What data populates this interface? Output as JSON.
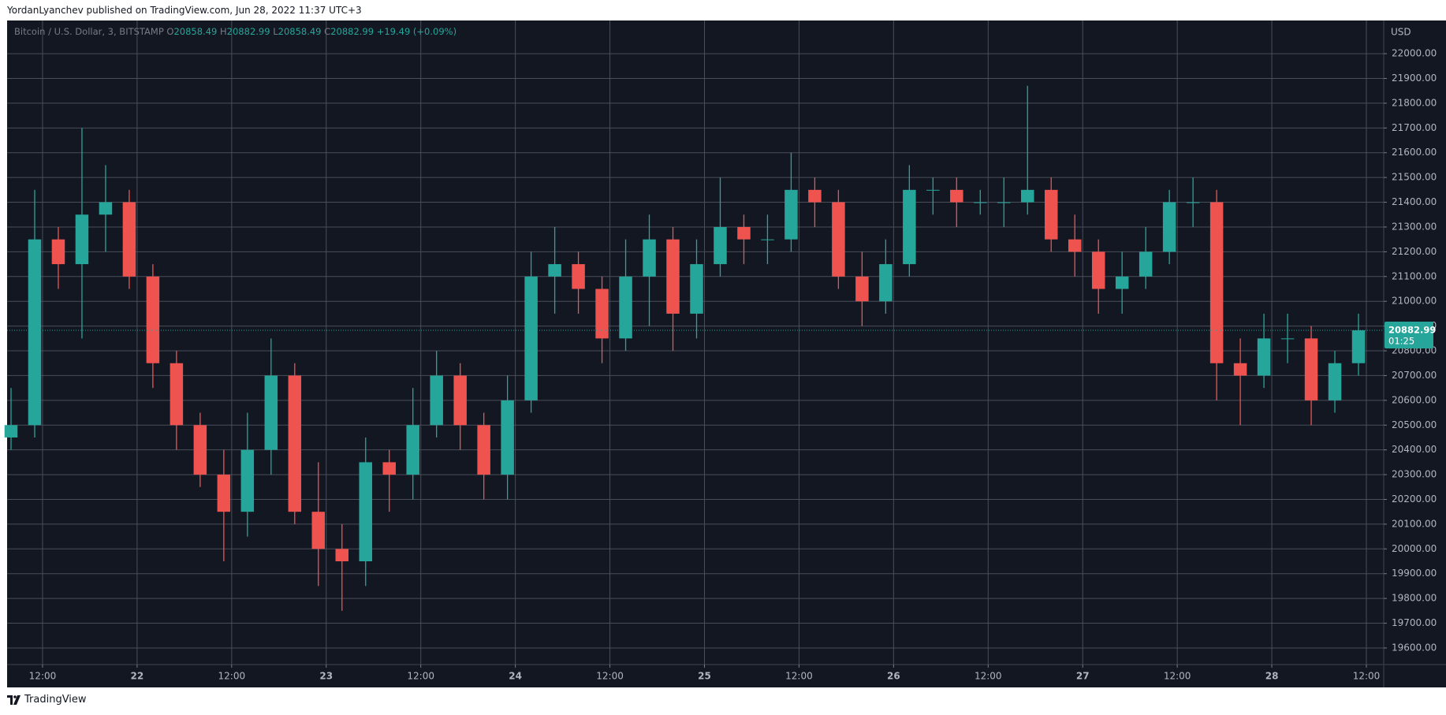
{
  "header": {
    "text": "YordanLyanchev published on TradingView.com, Jun 28, 2022 11:37 UTC+3"
  },
  "footer": {
    "brand": "TradingView"
  },
  "chart_data": {
    "type": "candlestick",
    "title": "Bitcoin / U.S. Dollar, 3, BITSTAMP",
    "ohlc": [
      {
        "label": "O",
        "value": 20858.49
      },
      {
        "label": "H",
        "value": 20882.99
      },
      {
        "label": "L",
        "value": 20858.49
      },
      {
        "label": "C",
        "value": 20882.99
      }
    ],
    "change": "+19.49 (+0.09%)",
    "currency": "USD",
    "last_price": 20882.99,
    "countdown": "01:25",
    "up_color": "#26a69a",
    "down_color": "#ef5350",
    "grid": true,
    "x": [
      -16,
      -13,
      -10,
      -7,
      -4,
      -1,
      2,
      5,
      8,
      11,
      14,
      17,
      20,
      23,
      26,
      29,
      32,
      35,
      38,
      41,
      44,
      47,
      50,
      53,
      56,
      59,
      62,
      65,
      68,
      71,
      74,
      77,
      80,
      83,
      86,
      89,
      92,
      95,
      98,
      101,
      104,
      107,
      110,
      113,
      116,
      119,
      122,
      125,
      128,
      131,
      134,
      137,
      140,
      143,
      146,
      149,
      152,
      155
    ],
    "open": [
      20450,
      20500,
      21250,
      21150,
      21350,
      21400,
      21100,
      20750,
      20500,
      20300,
      20150,
      20400,
      20700,
      20150,
      20000,
      19950,
      20350,
      20300,
      20500,
      20700,
      20500,
      20300,
      20600,
      21100,
      21150,
      21050,
      20850,
      21100,
      21250,
      20950,
      21150,
      21300,
      21250,
      21250,
      21450,
      21400,
      21100,
      21000,
      21150,
      21450,
      21450,
      21400,
      21400,
      21400,
      21450,
      21250,
      21200,
      21050,
      21100,
      21200,
      21400,
      21400,
      20750,
      20700,
      20850,
      20850,
      20600,
      20750
    ],
    "high": [
      20650,
      21450,
      21300,
      21700,
      21550,
      21450,
      21150,
      20800,
      20550,
      20400,
      20550,
      20850,
      20750,
      20350,
      20100,
      20450,
      20400,
      20650,
      20800,
      20750,
      20550,
      20700,
      21200,
      21300,
      21200,
      21100,
      21250,
      21350,
      21300,
      21250,
      21500,
      21350,
      21350,
      21600,
      21500,
      21450,
      21200,
      21250,
      21550,
      21500,
      21500,
      21450,
      21500,
      21870,
      21500,
      21350,
      21250,
      21200,
      21300,
      21450,
      21500,
      21450,
      20850,
      20950,
      20950,
      20900,
      20800,
      20950
    ],
    "low": [
      20400,
      20450,
      21050,
      20850,
      21200,
      21050,
      20650,
      20400,
      20250,
      19950,
      20050,
      20300,
      20100,
      19850,
      19750,
      19850,
      20150,
      20200,
      20450,
      20400,
      20200,
      20200,
      20550,
      20950,
      20950,
      20750,
      20800,
      20900,
      20800,
      20850,
      21100,
      21150,
      21150,
      21200,
      21300,
      21050,
      20900,
      20950,
      21100,
      21350,
      21300,
      21350,
      21300,
      21350,
      21200,
      21100,
      20950,
      20950,
      21050,
      21150,
      21300,
      20600,
      20500,
      20650,
      20750,
      20500,
      20550,
      20700
    ],
    "close": [
      20500,
      21250,
      21150,
      21350,
      21400,
      21100,
      20750,
      20500,
      20300,
      20150,
      20400,
      20700,
      20150,
      20000,
      19950,
      20350,
      20300,
      20500,
      20700,
      20500,
      20300,
      20600,
      21100,
      21150,
      21050,
      20850,
      21100,
      21250,
      20950,
      21150,
      21300,
      21250,
      21250,
      21450,
      21400,
      21100,
      21000,
      21150,
      21450,
      21450,
      21400,
      21400,
      21400,
      21450,
      21250,
      21200,
      21050,
      21100,
      21200,
      21400,
      21400,
      20750,
      20700,
      20850,
      20850,
      20600,
      20750,
      20882.99
    ],
    "xlim": [
      -16.5,
      158.2
    ],
    "ylim": [
      19533,
      22134
    ],
    "xticks": [
      {
        "value": -12,
        "label": "12:00"
      },
      {
        "value": 0,
        "label": "22"
      },
      {
        "value": 12,
        "label": "12:00"
      },
      {
        "value": 24,
        "label": "23"
      },
      {
        "value": 36,
        "label": "12:00"
      },
      {
        "value": 48,
        "label": "24"
      },
      {
        "value": 60,
        "label": "12:00"
      },
      {
        "value": 72,
        "label": "25"
      },
      {
        "value": 84,
        "label": "12:00"
      },
      {
        "value": 96,
        "label": "26"
      },
      {
        "value": 108,
        "label": "12:00"
      },
      {
        "value": 120,
        "label": "27"
      },
      {
        "value": 132,
        "label": "12:00"
      },
      {
        "value": 144,
        "label": "28"
      },
      {
        "value": 156,
        "label": "12:00"
      }
    ],
    "yticks": [
      {
        "value": 19600,
        "label": "19600.00"
      },
      {
        "value": 19700,
        "label": "19700.00"
      },
      {
        "value": 19800,
        "label": "19800.00"
      },
      {
        "value": 19900,
        "label": "19900.00"
      },
      {
        "value": 20000,
        "label": "20000.00"
      },
      {
        "value": 20100,
        "label": "20100.00"
      },
      {
        "value": 20200,
        "label": "20200.00"
      },
      {
        "value": 20300,
        "label": "20300.00"
      },
      {
        "value": 20400,
        "label": "20400.00"
      },
      {
        "value": 20500,
        "label": "20500.00"
      },
      {
        "value": 20600,
        "label": "20600.00"
      },
      {
        "value": 20700,
        "label": "20700.00"
      },
      {
        "value": 20800,
        "label": "20800.00"
      },
      {
        "value": 20900,
        "label": "20900.00"
      },
      {
        "value": 21000,
        "label": "21000.00"
      },
      {
        "value": 21100,
        "label": "21100.00"
      },
      {
        "value": 21200,
        "label": "21200.00"
      },
      {
        "value": 21300,
        "label": "21300.00"
      },
      {
        "value": 21400,
        "label": "21400.00"
      },
      {
        "value": 21500,
        "label": "21500.00"
      },
      {
        "value": 21600,
        "label": "21600.00"
      },
      {
        "value": 21700,
        "label": "21700.00"
      },
      {
        "value": 21800,
        "label": "21800.00"
      },
      {
        "value": 21900,
        "label": "21900.00"
      },
      {
        "value": 22000,
        "label": "22000.00"
      }
    ]
  }
}
